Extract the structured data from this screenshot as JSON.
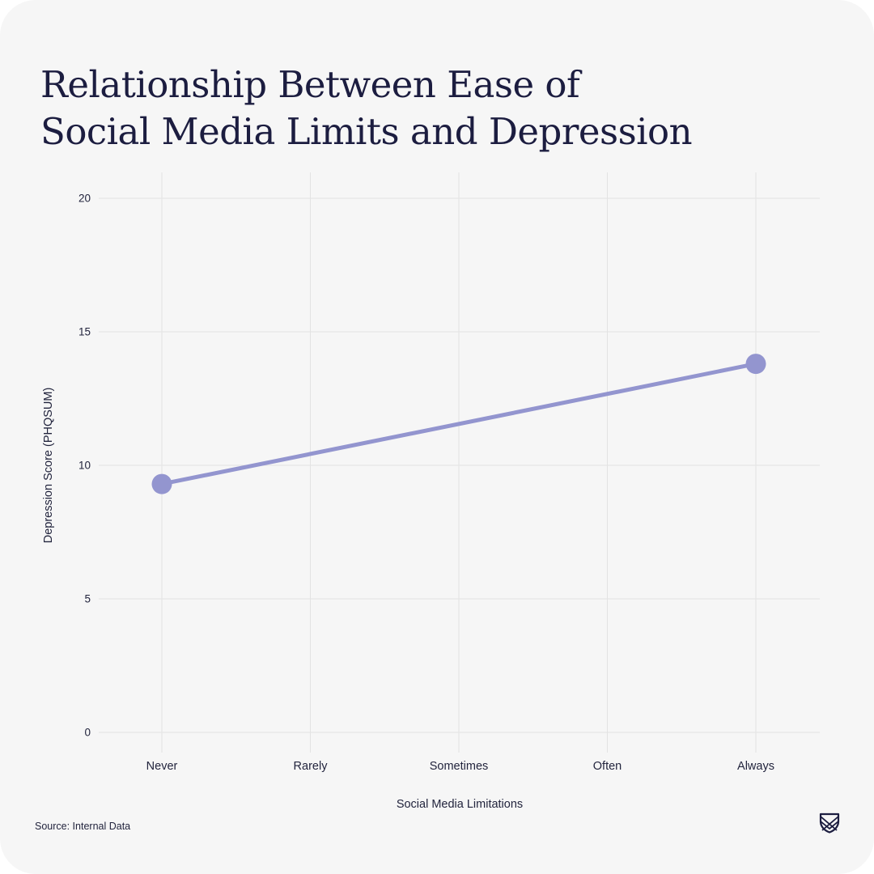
{
  "title_lines": [
    "Relationship Between Ease of",
    "Social Media Limits and Depression"
  ],
  "source": "Source: Internal Data",
  "logo_icon": "shield-crest-icon",
  "colors": {
    "background": "#f6f6f6",
    "text": "#1c1d40",
    "grid": "#e3e3e3",
    "series": "#9395cf"
  },
  "chart_data": {
    "type": "line",
    "title": "Relationship Between Ease of Social Media Limits and Depression",
    "xlabel": "Social Media Limitations",
    "ylabel": "Depression Score (PHQSUM)",
    "categories": [
      "Never",
      "Rarely",
      "Sometimes",
      "Often",
      "Always"
    ],
    "ylim": [
      0,
      20
    ],
    "yticks": [
      0,
      5,
      10,
      15,
      20
    ],
    "grid": true,
    "legend": "none",
    "series": [
      {
        "points": [
          {
            "x": "Never",
            "y": 9.3
          },
          {
            "x": "Always",
            "y": 13.8
          }
        ]
      }
    ]
  }
}
